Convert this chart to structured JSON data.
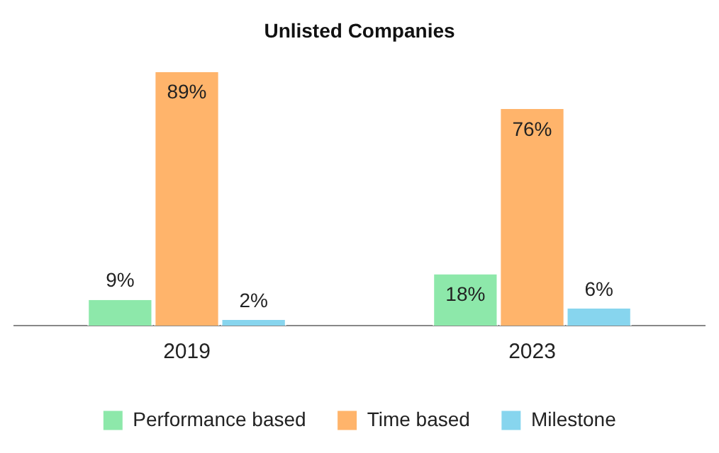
{
  "chart_data": {
    "type": "bar",
    "title": "Unlisted Companies",
    "categories": [
      "2019",
      "2023"
    ],
    "series": [
      {
        "name": "Performance based",
        "color": "#8de8aa",
        "values": [
          9,
          18
        ],
        "value_labels": [
          "9%",
          "18%"
        ]
      },
      {
        "name": "Time based",
        "color": "#ffb46b",
        "values": [
          89,
          76
        ],
        "value_labels": [
          "89%",
          "76%"
        ]
      },
      {
        "name": "Milestone",
        "color": "#87d5ee",
        "values": [
          2,
          6
        ],
        "value_labels": [
          "2%",
          "6%"
        ]
      }
    ],
    "grid": false,
    "legend": "bottom"
  }
}
